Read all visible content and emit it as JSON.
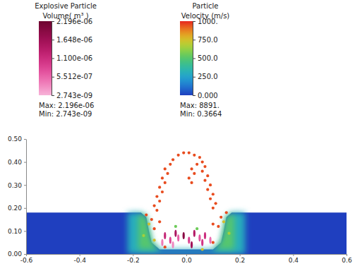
{
  "chart_data": {
    "type": "scatter",
    "xlim": [
      -0.6,
      0.6
    ],
    "xticks": [
      -0.6,
      -0.4,
      -0.2,
      {
        "value": 0,
        "label": "0.0"
      },
      0.2,
      0.4,
      0.6
    ],
    "ylim": [
      0,
      0.5
    ],
    "yticks": [
      {
        "value": 0,
        "label": "0.00"
      },
      {
        "value": 0.1,
        "label": "0.10"
      },
      {
        "value": 0.2,
        "label": "0.20"
      },
      {
        "value": 0.3,
        "label": "0.30"
      },
      {
        "value": 0.4,
        "label": "0.40"
      },
      {
        "value": 0.5,
        "label": "0.50"
      }
    ],
    "colorbars": [
      {
        "title": [
          "Explosive Particle",
          "Volume( m³ )"
        ],
        "range": [
          2.743e-09,
          2.196e-06
        ],
        "ticks": [
          {
            "value": 2.196e-06,
            "label": "2.196e-06"
          },
          {
            "value": 1.648e-06,
            "label": "1.648e-06"
          },
          {
            "value": 1.1e-06,
            "label": "1.100e-06"
          },
          {
            "value": 5.512e-07,
            "label": "5.512e-07"
          },
          {
            "value": 2.743e-09,
            "label": "2.743e-09"
          }
        ],
        "max": {
          "value": 2.196e-06,
          "label": "Max: 2.196e-06"
        },
        "min": {
          "value": 2.743e-09,
          "label": "Min: 2.743e-09"
        }
      },
      {
        "title": [
          "Particle",
          "Velocity (m/s)"
        ],
        "range": [
          0,
          1000
        ],
        "ticks": [
          {
            "value": 1000,
            "label": "1000."
          },
          {
            "value": 750,
            "label": "750.0"
          },
          {
            "value": 500,
            "label": "500.0"
          },
          {
            "value": 250,
            "label": "250.0"
          },
          {
            "value": 0,
            "label": "0.000"
          }
        ],
        "max": {
          "value": 8891,
          "label": "Max: 8891."
        },
        "min": {
          "value": 0.3664,
          "label": "Min: 0.3664"
        }
      }
    ],
    "series": [
      {
        "type": "area",
        "velocity": 0,
        "x": [
          -0.6,
          -0.6,
          -0.17,
          -0.15,
          -0.14,
          -0.13,
          -0.1,
          0.1,
          0.13,
          0.14,
          0.15,
          0.17,
          0.6,
          0.6
        ],
        "y": [
          0,
          0.18,
          0.18,
          0.16,
          0.1,
          0.05,
          0.02,
          0.02,
          0.05,
          0.1,
          0.16,
          0.18,
          0.18,
          0
        ]
      },
      {
        "type": "area",
        "velocity": 300,
        "x": [
          -0.22,
          -0.22,
          -0.17,
          -0.15,
          -0.14,
          -0.13,
          -0.1,
          0.1,
          0.13,
          0.14,
          0.15,
          0.17,
          0.22,
          0.22
        ],
        "y": [
          0,
          0.18,
          0.18,
          0.16,
          0.1,
          0.05,
          0.02,
          0.02,
          0.05,
          0.1,
          0.16,
          0.18,
          0.18,
          0
        ]
      },
      {
        "type": "area",
        "velocity": 500,
        "x": [
          -0.18,
          -0.18,
          -0.16,
          -0.15,
          -0.14,
          -0.13,
          -0.1,
          0.1,
          0.13,
          0.14,
          0.15,
          0.16,
          0.18,
          0.18
        ],
        "y": [
          0.02,
          0.17,
          0.17,
          0.16,
          0.1,
          0.05,
          0.02,
          0.02,
          0.05,
          0.1,
          0.16,
          0.17,
          0.17,
          0.02
        ]
      },
      {
        "type": "scatter",
        "x": [
          -0.11,
          -0.12,
          -0.1,
          -0.11,
          -0.09,
          -0.1,
          -0.08,
          -0.09,
          -0.07,
          -0.08,
          -0.06,
          -0.05,
          -0.03,
          -0.01,
          0.01,
          0.03,
          0.05,
          0.06,
          0.07,
          0.06,
          0.08,
          0.07,
          0.09,
          0.08,
          0.1,
          0.09,
          0.11,
          0.1,
          0.02,
          0.03,
          0.01,
          0.02,
          0.04,
          -0.15,
          -0.13,
          -0.14,
          -0.12,
          0.13,
          0.14,
          0.12,
          0.15,
          -0.1,
          0.1,
          -0.08,
          0.06,
          0.1,
          -0.12,
          -0.04,
          0.04,
          -0.16,
          0.16
        ],
        "y": [
          0.19,
          0.21,
          0.23,
          0.25,
          0.27,
          0.29,
          0.31,
          0.33,
          0.35,
          0.37,
          0.39,
          0.41,
          0.43,
          0.44,
          0.44,
          0.43,
          0.42,
          0.4,
          0.38,
          0.36,
          0.34,
          0.32,
          0.3,
          0.28,
          0.26,
          0.24,
          0.22,
          0.2,
          0.37,
          0.35,
          0.33,
          0.31,
          0.39,
          0.17,
          0.15,
          0.13,
          0.11,
          0.16,
          0.14,
          0.12,
          0.18,
          0.14,
          0.13,
          0.03,
          0.02,
          0.05,
          0.06,
          0.12,
          0.11,
          0.08,
          0.09
        ],
        "velocity": [
          950,
          950,
          950,
          950,
          950,
          950,
          950,
          950,
          950,
          950,
          950,
          950,
          950,
          950,
          950,
          950,
          950,
          950,
          950,
          950,
          950,
          950,
          950,
          950,
          950,
          950,
          950,
          950,
          950,
          950,
          950,
          950,
          950,
          950,
          950,
          750,
          950,
          950,
          750,
          950,
          950,
          950,
          950,
          950,
          750,
          950,
          750,
          550,
          550,
          650,
          650
        ]
      },
      {
        "type": "scatter",
        "x": [
          -0.08,
          -0.06,
          -0.04,
          -0.03,
          -0.01,
          0.01,
          0.03,
          0.05,
          0.07,
          0.09,
          -0.09,
          0.02,
          -0.05,
          0.06
        ],
        "y": [
          0.08,
          0.06,
          0.09,
          0.07,
          0.08,
          0.06,
          0.09,
          0.07,
          0.08,
          0.06,
          0.05,
          0.04,
          0.04,
          0.05
        ],
        "volume": [
          1.2e-06,
          8e-07,
          1.5e-06,
          6e-07,
          1.9e-06,
          9e-07,
          1.4e-06,
          7e-07,
          1.1e-06,
          5e-07,
          4e-07,
          1.6e-06,
          3e-07,
          1e-06
        ]
      }
    ]
  }
}
